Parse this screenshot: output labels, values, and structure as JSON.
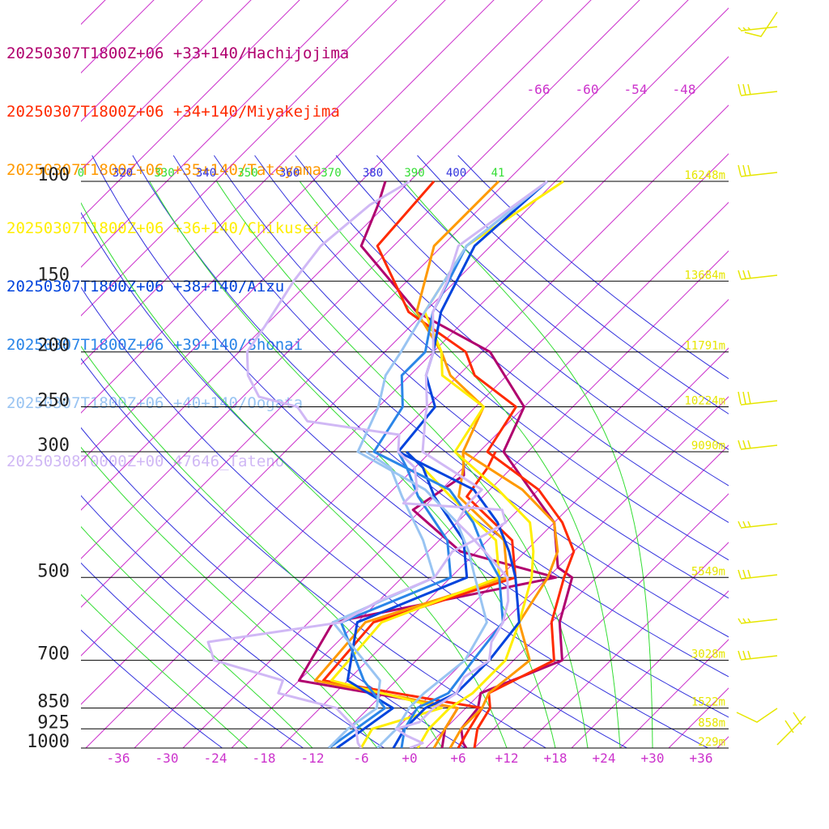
{
  "colors": {
    "isobar": "#000000",
    "isotherm": "#cc33cc",
    "dry_adiabat": "#3333dd",
    "moist_adiabat": "#33dd33",
    "height_label": "#e6e600",
    "wind_barb": "#e6e600"
  },
  "chart_data": {
    "type": "skew-t",
    "pressure_axis": {
      "levels": [
        100,
        150,
        200,
        250,
        300,
        500,
        700,
        850,
        925,
        1000
      ],
      "labels": [
        "100",
        "150",
        "200",
        "250",
        "300",
        "500",
        "700",
        "850",
        "925",
        "1000"
      ],
      "scale": "log",
      "range": [
        100,
        1000
      ]
    },
    "temperature_axis": {
      "ticks": [
        -36,
        -30,
        -24,
        -18,
        -12,
        -6,
        0,
        6,
        12,
        18,
        24,
        30,
        36
      ],
      "labels": [
        "-36",
        "-30",
        "-24",
        "-18",
        "-12",
        "-6",
        "+0",
        "+6",
        "+12",
        "+18",
        "+24",
        "+30",
        "+36"
      ],
      "range": [
        -40,
        40
      ]
    },
    "upper_temperature_labels": [
      "-66",
      "-60",
      "-54",
      "-48"
    ],
    "theta_labels": [
      "0",
      "320",
      "330",
      "340",
      "350",
      "360",
      "370",
      "380",
      "390",
      "400",
      "41"
    ],
    "height_labels": [
      {
        "pressure": 100,
        "text": "16248m"
      },
      {
        "pressure": 150,
        "text": "13684m"
      },
      {
        "pressure": 200,
        "text": "11791m"
      },
      {
        "pressure": 250,
        "text": "10224m"
      },
      {
        "pressure": 300,
        "text": "9090m"
      },
      {
        "pressure": 500,
        "text": "5549m"
      },
      {
        "pressure": 700,
        "text": "3028m"
      },
      {
        "pressure": 850,
        "text": "1522m"
      },
      {
        "pressure": 925,
        "text": "858m"
      },
      {
        "pressure": 1000,
        "text": "229m"
      }
    ],
    "series": [
      {
        "name": "20250307T1800Z+06 +33+140/Hachijojima",
        "color": "#b0006e",
        "temperature": [
          [
            1000,
            7
          ],
          [
            980,
            6
          ],
          [
            925,
            4
          ],
          [
            850,
            3.5
          ],
          [
            800,
            2
          ],
          [
            700,
            8
          ],
          [
            600,
            3
          ],
          [
            500,
            -1
          ],
          [
            480,
            -4
          ],
          [
            400,
            -10
          ],
          [
            350,
            -17
          ],
          [
            300,
            -25
          ],
          [
            250,
            -28
          ],
          [
            200,
            -39
          ],
          [
            170,
            -53
          ],
          [
            130,
            -68
          ],
          [
            110,
            -71
          ],
          [
            100,
            -73
          ]
        ],
        "dewpoint": [
          [
            1000,
            4
          ],
          [
            925,
            2
          ],
          [
            850,
            1
          ],
          [
            760,
            -22
          ],
          [
            600,
            -25
          ],
          [
            500,
            -3
          ],
          [
            450,
            -18
          ],
          [
            380,
            -29
          ],
          [
            330,
            -27
          ],
          [
            300,
            -30
          ]
        ]
      },
      {
        "name": "20250307T1800Z+06 +34+140/Miyakejima",
        "color": "#ff2a00",
        "temperature": [
          [
            1000,
            8
          ],
          [
            925,
            6
          ],
          [
            850,
            5
          ],
          [
            800,
            3
          ],
          [
            700,
            7
          ],
          [
            600,
            2
          ],
          [
            500,
            -2
          ],
          [
            450,
            -4
          ],
          [
            400,
            -9
          ],
          [
            350,
            -16
          ],
          [
            300,
            -27
          ],
          [
            250,
            -29
          ],
          [
            220,
            -38
          ],
          [
            200,
            -42
          ],
          [
            170,
            -54
          ],
          [
            130,
            -66
          ],
          [
            100,
            -67
          ]
        ],
        "dewpoint": [
          [
            1000,
            6
          ],
          [
            925,
            5
          ],
          [
            850,
            4
          ],
          [
            760,
            -19
          ],
          [
            600,
            -20
          ],
          [
            500,
            -8
          ],
          [
            430,
            -13
          ],
          [
            360,
            -24
          ],
          [
            320,
            -25
          ],
          [
            300,
            -26
          ]
        ]
      },
      {
        "name": "20250307T1800Z+06 +35+140/Tateyama",
        "color": "#ff9900",
        "temperature": [
          [
            1000,
            5
          ],
          [
            925,
            4
          ],
          [
            850,
            4
          ],
          [
            800,
            3
          ],
          [
            700,
            4
          ],
          [
            600,
            -2
          ],
          [
            500,
            -4
          ],
          [
            450,
            -6
          ],
          [
            400,
            -10
          ],
          [
            350,
            -18
          ],
          [
            300,
            -30
          ],
          [
            250,
            -33
          ],
          [
            220,
            -41
          ],
          [
            200,
            -45
          ],
          [
            170,
            -53
          ],
          [
            130,
            -59
          ],
          [
            100,
            -59
          ]
        ],
        "dewpoint": [
          [
            1000,
            3
          ],
          [
            925,
            2
          ],
          [
            850,
            1
          ],
          [
            760,
            -20
          ],
          [
            600,
            -21
          ],
          [
            500,
            -9
          ],
          [
            430,
            -14
          ],
          [
            360,
            -25
          ],
          [
            320,
            -28
          ],
          [
            300,
            -30
          ]
        ]
      },
      {
        "name": "20250307T1800Z+06 +36+140/Chikusei",
        "color": "#ffee00",
        "temperature": [
          [
            1000,
            1
          ],
          [
            925,
            0
          ],
          [
            850,
            0
          ],
          [
            800,
            1
          ],
          [
            700,
            1
          ],
          [
            600,
            -2
          ],
          [
            500,
            -6
          ],
          [
            450,
            -9
          ],
          [
            400,
            -13
          ],
          [
            350,
            -21
          ],
          [
            300,
            -31
          ],
          [
            250,
            -33
          ],
          [
            220,
            -42
          ],
          [
            200,
            -45
          ],
          [
            170,
            -52
          ],
          [
            130,
            -55
          ],
          [
            100,
            -51
          ]
        ],
        "dewpoint": [
          [
            1000,
            -6
          ],
          [
            925,
            -7
          ],
          [
            850,
            -1
          ],
          [
            760,
            -18
          ],
          [
            600,
            -19
          ],
          [
            500,
            -10
          ],
          [
            430,
            -15
          ],
          [
            360,
            -26
          ],
          [
            320,
            -33
          ],
          [
            300,
            -37
          ]
        ]
      },
      {
        "name": "20250307T1800Z+06 +38+140/Aizu",
        "color": "#0044dd",
        "temperature": [
          [
            1000,
            -2
          ],
          [
            925,
            -3
          ],
          [
            850,
            -3
          ],
          [
            800,
            -1
          ],
          [
            700,
            -1
          ],
          [
            600,
            -2
          ],
          [
            500,
            -8
          ],
          [
            450,
            -12
          ],
          [
            400,
            -17
          ],
          [
            350,
            -24
          ],
          [
            300,
            -38
          ],
          [
            250,
            -39
          ],
          [
            220,
            -44
          ],
          [
            200,
            -46
          ],
          [
            170,
            -50
          ],
          [
            130,
            -54
          ],
          [
            100,
            -53
          ]
        ],
        "dewpoint": [
          [
            1000,
            -9
          ],
          [
            925,
            -8
          ],
          [
            850,
            -7
          ],
          [
            760,
            -16
          ],
          [
            600,
            -22
          ],
          [
            500,
            -14
          ],
          [
            430,
            -19
          ],
          [
            360,
            -28
          ],
          [
            320,
            -33
          ],
          [
            300,
            -37
          ]
        ]
      },
      {
        "name": "20250307T1800Z+06 +39+140/Shonai",
        "color": "#2a85e8",
        "temperature": [
          [
            1000,
            -1
          ],
          [
            925,
            -3
          ],
          [
            850,
            -4
          ],
          [
            800,
            -2
          ],
          [
            700,
            -3
          ],
          [
            600,
            -4
          ],
          [
            500,
            -10
          ],
          [
            450,
            -15
          ],
          [
            400,
            -20
          ],
          [
            350,
            -27
          ],
          [
            300,
            -41
          ],
          [
            250,
            -43
          ],
          [
            220,
            -47
          ],
          [
            200,
            -47
          ],
          [
            170,
            -51
          ],
          [
            130,
            -55
          ],
          [
            100,
            -53
          ]
        ],
        "dewpoint": [
          [
            1000,
            -10
          ],
          [
            925,
            -9
          ],
          [
            850,
            -8
          ],
          [
            760,
            -14
          ],
          [
            600,
            -24
          ],
          [
            500,
            -16
          ],
          [
            430,
            -21
          ],
          [
            360,
            -30
          ],
          [
            320,
            -35
          ],
          [
            300,
            -38
          ]
        ]
      },
      {
        "name": "20250307T1800Z+06 +40+140/Oogata",
        "color": "#99c4f2",
        "temperature": [
          [
            1000,
            -4
          ],
          [
            925,
            -4
          ],
          [
            850,
            -5
          ],
          [
            800,
            -5
          ],
          [
            700,
            -4
          ],
          [
            600,
            -6
          ],
          [
            500,
            -13
          ],
          [
            450,
            -17
          ],
          [
            400,
            -22
          ],
          [
            350,
            -30
          ],
          [
            300,
            -43
          ],
          [
            250,
            -46
          ],
          [
            220,
            -49
          ],
          [
            200,
            -50
          ],
          [
            170,
            -52
          ],
          [
            130,
            -55
          ],
          [
            100,
            -53
          ]
        ],
        "dewpoint": [
          [
            1000,
            -10
          ],
          [
            925,
            -10
          ],
          [
            850,
            -9
          ],
          [
            760,
            -12
          ],
          [
            600,
            -25
          ],
          [
            500,
            -18
          ],
          [
            430,
            -24
          ],
          [
            360,
            -32
          ],
          [
            320,
            -37
          ],
          [
            300,
            -42
          ]
        ]
      },
      {
        "name": "20250308T0000Z+00 47646_Tateno",
        "color": "#d0b8f5",
        "temperature": [
          [
            1000,
            0
          ],
          [
            980,
            1
          ],
          [
            950,
            -2
          ],
          [
            925,
            -4
          ],
          [
            900,
            -2
          ],
          [
            850,
            -2
          ],
          [
            800,
            -1
          ],
          [
            750,
            -2
          ],
          [
            700,
            -1
          ],
          [
            650,
            -3
          ],
          [
            600,
            -4
          ],
          [
            550,
            -6
          ],
          [
            500,
            -9
          ],
          [
            450,
            -15
          ],
          [
            420,
            -19
          ],
          [
            400,
            -22
          ],
          [
            370,
            -23
          ],
          [
            350,
            -23
          ],
          [
            300,
            -35
          ],
          [
            260,
            -39
          ],
          [
            250,
            -40
          ],
          [
            220,
            -44
          ],
          [
            200,
            -46
          ],
          [
            170,
            -51
          ],
          [
            150,
            -53
          ],
          [
            130,
            -56
          ],
          [
            100,
            -53
          ]
        ],
        "dewpoint": [
          [
            1000,
            -6
          ],
          [
            980,
            -7
          ],
          [
            925,
            -9
          ],
          [
            850,
            -14
          ],
          [
            800,
            -23
          ],
          [
            760,
            -24
          ],
          [
            700,
            -35
          ],
          [
            650,
            -38
          ],
          [
            600,
            -24
          ],
          [
            550,
            -22
          ],
          [
            500,
            -18
          ],
          [
            450,
            -19
          ],
          [
            420,
            -17
          ],
          [
            400,
            -16
          ],
          [
            380,
            -18
          ],
          [
            370,
            -31
          ],
          [
            350,
            -31
          ],
          [
            320,
            -34
          ],
          [
            300,
            -38
          ],
          [
            280,
            -40
          ],
          [
            265,
            -53
          ],
          [
            250,
            -56
          ],
          [
            240,
            -62
          ],
          [
            220,
            -66
          ],
          [
            200,
            -69
          ],
          [
            180,
            -70
          ],
          [
            150,
            -72
          ],
          [
            130,
            -73
          ],
          [
            110,
            -72
          ],
          [
            100,
            -70
          ]
        ]
      }
    ]
  }
}
